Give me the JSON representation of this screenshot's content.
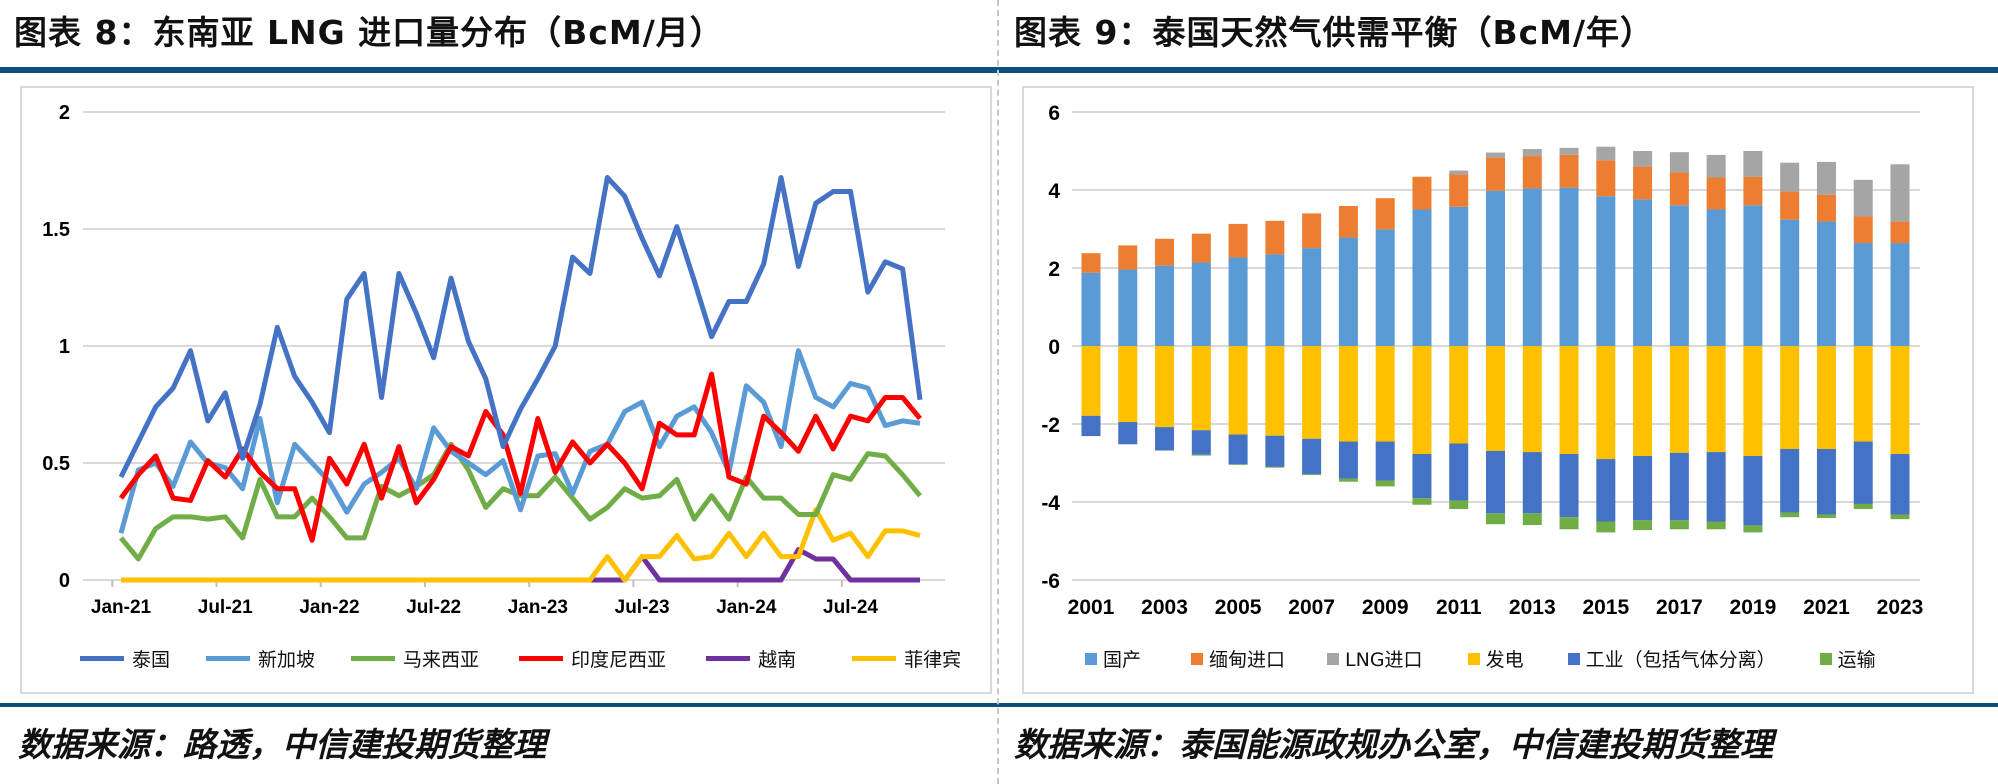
{
  "left": {
    "title": "图表 8：东南亚 LNG 进口量分布（BcM/月）",
    "footer": "数据来源：路透，中信建投期货整理"
  },
  "right": {
    "title": "图表 9：泰国天然气供需平衡（BcM/年）",
    "footer": "数据来源：泰国能源政规办公室，中信建投期货整理"
  },
  "colors": {
    "rule": "#0b4f7c"
  },
  "chart_data": [
    {
      "type": "line",
      "title": "",
      "ylim": [
        0,
        2
      ],
      "yticks": [
        "0",
        "0.5",
        "1",
        "1.5",
        "2"
      ],
      "grid": true,
      "legend_position": "bottom",
      "x_tick_labels": [
        "Jan-21",
        "Jul-21",
        "Jan-22",
        "Jul-22",
        "Jan-23",
        "Jul-23",
        "Jan-24",
        "Jul-24"
      ],
      "x_start": "Jan-21",
      "series": [
        {
          "name": "泰国",
          "color": "#4472c4",
          "values": [
            0.44,
            0.59,
            0.74,
            0.82,
            0.98,
            0.68,
            0.8,
            0.52,
            0.75,
            1.08,
            0.87,
            0.76,
            0.63,
            1.2,
            1.31,
            0.78,
            1.31,
            1.14,
            0.95,
            1.29,
            1.02,
            0.86,
            0.57,
            0.73,
            0.86,
            1.0,
            1.38,
            1.31,
            1.72,
            1.64,
            1.46,
            1.3,
            1.51,
            1.28,
            1.04,
            1.19,
            1.19,
            1.35,
            1.72,
            1.34,
            1.61,
            1.66,
            1.66,
            1.23,
            1.36,
            1.33,
            0.77
          ]
        },
        {
          "name": "新加坡",
          "color": "#5b9bd5",
          "values": [
            0.2,
            0.47,
            0.5,
            0.4,
            0.59,
            0.5,
            0.48,
            0.39,
            0.69,
            0.33,
            0.58,
            0.5,
            0.42,
            0.29,
            0.41,
            0.46,
            0.52,
            0.39,
            0.65,
            0.55,
            0.5,
            0.45,
            0.51,
            0.3,
            0.53,
            0.54,
            0.37,
            0.55,
            0.58,
            0.72,
            0.76,
            0.57,
            0.7,
            0.74,
            0.63,
            0.46,
            0.83,
            0.76,
            0.57,
            0.98,
            0.78,
            0.74,
            0.84,
            0.82,
            0.66,
            0.68,
            0.67
          ]
        },
        {
          "name": "马来西亚",
          "color": "#70ad47",
          "values": [
            0.18,
            0.09,
            0.22,
            0.27,
            0.27,
            0.26,
            0.27,
            0.18,
            0.43,
            0.27,
            0.27,
            0.35,
            0.27,
            0.18,
            0.18,
            0.4,
            0.36,
            0.4,
            0.45,
            0.58,
            0.47,
            0.31,
            0.39,
            0.36,
            0.36,
            0.44,
            0.35,
            0.26,
            0.31,
            0.39,
            0.35,
            0.36,
            0.43,
            0.26,
            0.36,
            0.26,
            0.44,
            0.35,
            0.35,
            0.28,
            0.28,
            0.45,
            0.43,
            0.54,
            0.53,
            0.45,
            0.36
          ]
        },
        {
          "name": "印度尼西亚",
          "color": "#ff0000",
          "values": [
            0.35,
            0.45,
            0.53,
            0.35,
            0.34,
            0.51,
            0.44,
            0.56,
            0.46,
            0.39,
            0.39,
            0.17,
            0.52,
            0.41,
            0.58,
            0.35,
            0.57,
            0.33,
            0.43,
            0.57,
            0.53,
            0.72,
            0.62,
            0.37,
            0.69,
            0.46,
            0.59,
            0.5,
            0.58,
            0.5,
            0.39,
            0.67,
            0.62,
            0.62,
            0.88,
            0.44,
            0.41,
            0.7,
            0.63,
            0.55,
            0.7,
            0.56,
            0.7,
            0.68,
            0.78,
            0.78,
            0.69
          ]
        },
        {
          "name": "越南",
          "color": "#7030a0",
          "values": [
            0,
            0,
            0,
            0,
            0,
            0,
            0,
            0,
            0,
            0,
            0,
            0,
            0,
            0,
            0,
            0,
            0,
            0,
            0,
            0,
            0,
            0,
            0,
            0,
            0,
            0,
            0,
            0,
            0,
            0,
            0.1,
            0,
            0,
            0,
            0,
            0,
            0,
            0,
            0,
            0.13,
            0.09,
            0.09,
            0,
            0,
            0,
            0,
            0
          ]
        },
        {
          "name": "菲律宾",
          "color": "#ffc000",
          "values": [
            0,
            0,
            0,
            0,
            0,
            0,
            0,
            0,
            0,
            0,
            0,
            0,
            0,
            0,
            0,
            0,
            0,
            0,
            0,
            0,
            0,
            0,
            0,
            0,
            0,
            0,
            0,
            0,
            0.1,
            0,
            0.1,
            0.1,
            0.19,
            0.09,
            0.1,
            0.2,
            0.1,
            0.2,
            0.1,
            0.1,
            0.3,
            0.17,
            0.2,
            0.1,
            0.21,
            0.21,
            0.19
          ]
        }
      ]
    },
    {
      "type": "bar",
      "stacked": true,
      "title": "",
      "ylim": [
        -6,
        6
      ],
      "yticks": [
        "-6",
        "-4",
        "-2",
        "0",
        "2",
        "4",
        "6"
      ],
      "grid": true,
      "legend_position": "bottom",
      "categories": [
        "2001",
        "2002",
        "2003",
        "2004",
        "2005",
        "2006",
        "2007",
        "2008",
        "2009",
        "2010",
        "2011",
        "2012",
        "2013",
        "2014",
        "2015",
        "2016",
        "2017",
        "2018",
        "2019",
        "2020",
        "2021",
        "2022",
        "2023"
      ],
      "x_tick_labels": [
        "2001",
        "2003",
        "2005",
        "2007",
        "2009",
        "2011",
        "2013",
        "2015",
        "2017",
        "2019",
        "2021",
        "2023"
      ],
      "series": [
        {
          "name": "国产",
          "color": "#5b9bd5",
          "values": [
            1.88,
            1.96,
            2.06,
            2.14,
            2.27,
            2.35,
            2.51,
            2.78,
            2.99,
            3.5,
            3.57,
            3.98,
            4.04,
            4.06,
            3.84,
            3.76,
            3.61,
            3.5,
            3.61,
            3.24,
            3.19,
            2.64,
            2.64
          ]
        },
        {
          "name": "缅甸进口",
          "color": "#ed7d31",
          "values": [
            0.5,
            0.62,
            0.69,
            0.74,
            0.86,
            0.86,
            0.89,
            0.81,
            0.8,
            0.84,
            0.83,
            0.85,
            0.83,
            0.84,
            0.92,
            0.84,
            0.84,
            0.82,
            0.73,
            0.72,
            0.69,
            0.68,
            0.55
          ]
        },
        {
          "name": "LNG进口",
          "color": "#a5a5a5",
          "values": [
            0,
            0,
            0,
            0,
            0,
            0,
            0,
            0,
            0,
            0,
            0.1,
            0.13,
            0.18,
            0.18,
            0.35,
            0.4,
            0.52,
            0.58,
            0.66,
            0.74,
            0.84,
            0.94,
            1.47
          ]
        },
        {
          "name": "发电",
          "color": "#ffc000",
          "values": [
            -1.79,
            -1.95,
            -2.08,
            -2.16,
            -2.27,
            -2.3,
            -2.38,
            -2.45,
            -2.45,
            -2.77,
            -2.5,
            -2.69,
            -2.72,
            -2.77,
            -2.9,
            -2.82,
            -2.74,
            -2.72,
            -2.82,
            -2.64,
            -2.64,
            -2.45,
            -2.77
          ]
        },
        {
          "name": "工业（包括气体分离）",
          "color": "#4472c4",
          "values": [
            -0.52,
            -0.57,
            -0.6,
            -0.63,
            -0.76,
            -0.8,
            -0.91,
            -0.95,
            -1.0,
            -1.13,
            -1.46,
            -1.6,
            -1.57,
            -1.62,
            -1.6,
            -1.65,
            -1.73,
            -1.78,
            -1.78,
            -1.63,
            -1.68,
            -1.6,
            -1.55
          ]
        },
        {
          "name": "运输",
          "color": "#70ad47",
          "values": [
            0,
            0,
            0,
            -0.02,
            -0.02,
            -0.02,
            -0.02,
            -0.08,
            -0.15,
            -0.17,
            -0.22,
            -0.28,
            -0.3,
            -0.31,
            -0.28,
            -0.25,
            -0.23,
            -0.2,
            -0.18,
            -0.12,
            -0.09,
            -0.13,
            -0.12
          ]
        }
      ]
    }
  ]
}
